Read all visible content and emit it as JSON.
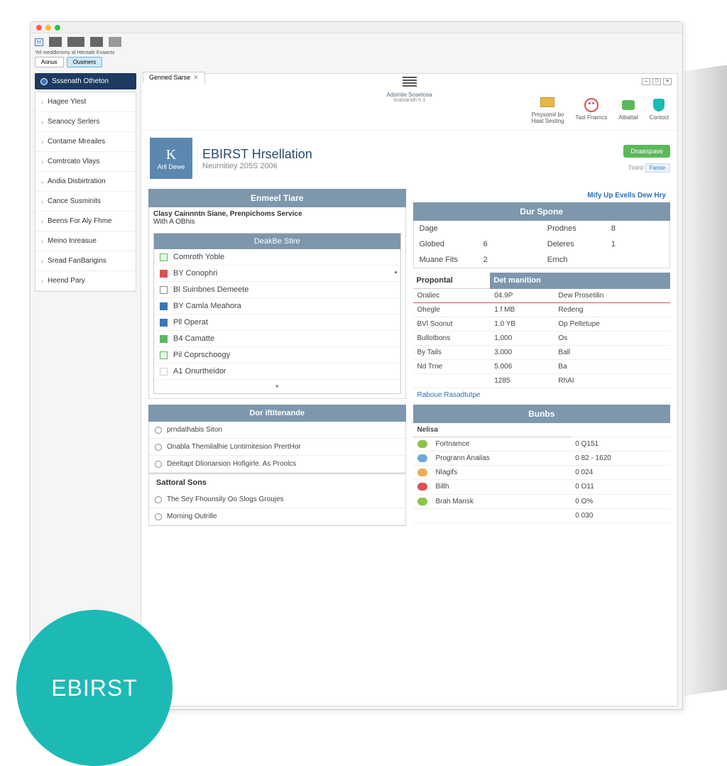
{
  "colors": {
    "header_bar": "#7e97ad",
    "sidebar_header": "#1d3a5f",
    "avatar": "#5c88b0",
    "green_btn": "#5cb85c",
    "logo": "#1dbab5",
    "link": "#2a6fbf",
    "red": "#d9534f"
  },
  "toolbar": {
    "hint": "Yel meddleromy al Htestale Evaants",
    "tab_a": "Aonus",
    "tab_b": "Ousmers"
  },
  "topband": {
    "center_line1": "Adsintie Sosetosa",
    "center_line2": "Iinatoarath h 3",
    "actions": [
      {
        "label_l1": "Pmysomil bo",
        "label_l2": "Haat Sesting",
        "icon": "card",
        "icon_color": "#e8b74a"
      },
      {
        "label_l1": "Tasl Fnamcs",
        "label_l2": "",
        "icon": "face",
        "icon_color": "#d9534f"
      },
      {
        "label_l1": "Atbattal",
        "label_l2": "",
        "icon": "chat",
        "icon_color": "#5cb85c"
      },
      {
        "label_l1": "Contoct",
        "label_l2": "",
        "icon": "shield",
        "icon_color": "#1dbab5"
      }
    ]
  },
  "sidebar": {
    "header": "Sssenath Otheton",
    "items": [
      "Hagee Ylest",
      "Seanocy Serlers",
      "Contame Mreailes",
      "Comtrcato Vlays",
      "Andia Disbirtration",
      "Cance Susminits",
      "Beens For Aly Fhme",
      "Meino Inreasue",
      "Sread FanBarigins",
      "Heend Pary"
    ]
  },
  "content_tab": "Genried Sarse",
  "page": {
    "avatar_big": "K",
    "avatar_small": "Arll Dewe",
    "title": "EBIRST Hrsellation",
    "subtitle": "Neurnitiey 205S 2006",
    "green_btn": "Dnaespave",
    "meta_a": "Ttolrd",
    "meta_b": "Fanse"
  },
  "left": {
    "h1": "Enmeel Tiare",
    "info_l1": "Clasy Cainnntn Siane, Prenpichoms Service",
    "info_l2": "With A OBhis",
    "list_head": "DeakBe Stire",
    "list": [
      {
        "color": "#5cb85c",
        "bg": "#eaf7ea",
        "border": "#5cb85c",
        "text": "Comroth Yoble"
      },
      {
        "color": "#d9534f",
        "bg": "#d9534f",
        "border": "#d9534f",
        "text": "BY Conophri"
      },
      {
        "color": "",
        "bg": "#fff",
        "border": "#888",
        "text": "Bl Suinbnes Demeete"
      },
      {
        "color": "#3a76b8",
        "bg": "#3a76b8",
        "border": "#3a76b8",
        "text": "BY Camla Meahora"
      },
      {
        "color": "#3a76b8",
        "bg": "#3a76b8",
        "border": "#3a76b8",
        "text": "Pll Operat"
      },
      {
        "color": "#5cb85c",
        "bg": "#5cb85c",
        "border": "#5cb85c",
        "text": "B4 Camatte"
      },
      {
        "color": "#eaf7ea",
        "bg": "#eaf7ea",
        "border": "#5cb85c",
        "text": "Pil Coprschoogy"
      },
      {
        "color": "",
        "bg": "#fff",
        "border": "#ccc",
        "text": "A1 Onurtheidor"
      }
    ],
    "h2": "Dor iftltenande",
    "radios": [
      "prndathabis Siton",
      "Onabla Themilalhie Lontirnitesion PrertHor",
      "Deeltapt Dlionarsion Hofigirle. As Proolcs"
    ],
    "h3": "Sattoral Sons",
    "radios2": [
      "The Sey Fhounsily Oo Slogs Groujes",
      "Morning Outrille"
    ]
  },
  "right": {
    "link_top": "Mify Up Evells Dew Hry",
    "h1": "Dur Spone",
    "sum_left": [
      {
        "k": "Dage",
        "v": ""
      },
      {
        "k": "Globed",
        "v": "6"
      },
      {
        "k": "Muane Fits",
        "v": "2"
      }
    ],
    "sum_right": [
      {
        "k": "Prodnes",
        "v": "8"
      },
      {
        "k": "Deleres",
        "v": "1"
      },
      {
        "k": "Ernch",
        "v": ""
      }
    ],
    "tbl1_h1": "Propontal",
    "tbl1_h2": "Det manition",
    "tbl1": [
      [
        "Oraliec",
        "04.9P",
        "Dew Prosetilin"
      ],
      [
        "Ohegle",
        "1 f MB",
        "Redeng"
      ],
      [
        "BVl Soonut",
        "1.0 YB",
        "Op Peltetupe"
      ],
      [
        "Bullotbons",
        "1,000",
        "Os"
      ],
      [
        "By Tails",
        "3.000",
        "Ball"
      ],
      [
        "Nd Trne",
        "5.006",
        "Ba"
      ],
      [
        "",
        "1285",
        "RhAI"
      ]
    ],
    "link_mid": "Raboue Rasadtutpe",
    "h2": "Bunbs",
    "tbl2_h1": "Nelisa",
    "tbl2": [
      {
        "pill": "#8bc34a",
        "name": "Fortnamce",
        "val": "0 Q151"
      },
      {
        "pill": "#6fa8dc",
        "name": "Progrann Anailas",
        "val": "0 82 - 1620"
      },
      {
        "pill": "#f0ad4e",
        "name": "Nlagifs",
        "val": "0 024"
      },
      {
        "pill": "#d9534f",
        "name": "Billh",
        "val": "0 O11"
      },
      {
        "pill": "#8bc34a",
        "name": "Brah Mansk",
        "val": "0 O%"
      },
      {
        "pill": "",
        "name": "",
        "val": "0 030"
      }
    ]
  },
  "logo": "EBIRST"
}
